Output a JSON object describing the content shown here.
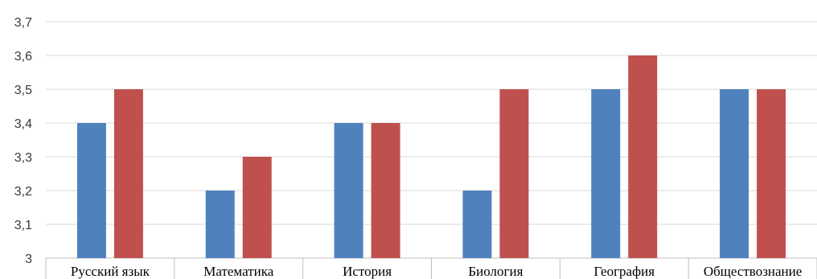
{
  "chart_data": {
    "type": "bar",
    "categories": [
      "Русский язык",
      "Математика",
      "История",
      "Биология",
      "География",
      "Обществознание"
    ],
    "series": [
      {
        "values": [
          3.4,
          3.2,
          3.4,
          3.2,
          3.5,
          3.5
        ],
        "color": "#4f81bd"
      },
      {
        "values": [
          3.5,
          3.3,
          3.4,
          3.5,
          3.6,
          3.5
        ],
        "color": "#c0504d"
      }
    ],
    "yticks": [
      "3",
      "3,1",
      "3,2",
      "3,3",
      "3,4",
      "3,5",
      "3,6",
      "3,7"
    ],
    "ylim": [
      3,
      3.7
    ],
    "grid": true,
    "legend": "none",
    "gridline_color": "#d9d9d9",
    "axis_color": "#bfbfbf"
  }
}
